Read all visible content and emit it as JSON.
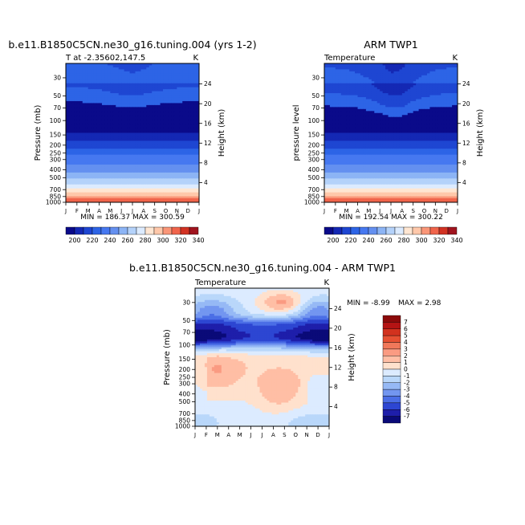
{
  "chart_data": [
    {
      "type": "heatmap",
      "title": "b.e11.B1850C5CN.ne30_g16.tuning.004 (yrs 1-2)",
      "subtitle_left": "T at -2.35602,147.5",
      "subtitle_right": "K",
      "ylabel": "Pressure (mb)",
      "ylabel_right": "Height (km)",
      "x_ticks": [
        "J",
        "F",
        "M",
        "A",
        "M",
        "J",
        "J",
        "A",
        "S",
        "O",
        "N",
        "D",
        "J"
      ],
      "y_ticks": [
        "30",
        "50",
        "70",
        "100",
        "150",
        "200",
        "250",
        "300",
        "400",
        "500",
        "700",
        "850",
        "1000"
      ],
      "y_ticks_right": [
        "24",
        "20",
        "16",
        "12",
        "8",
        "4"
      ],
      "stats": "MIN = 186.37  MAX = 300.59",
      "min": 186.37,
      "max": 300.59,
      "colorbar_labels": [
        "200",
        "220",
        "240",
        "260",
        "280",
        "300",
        "320",
        "340"
      ],
      "tropopause_boundary_mb": [
        58,
        59,
        60,
        62,
        65,
        68,
        70,
        68,
        64,
        62,
        60,
        59,
        58
      ]
    },
    {
      "type": "heatmap",
      "title": "ARM TWP1",
      "subtitle_left": "Temperature",
      "subtitle_right": "K",
      "ylabel": "pressure level",
      "ylabel_right": "Height (km)",
      "x_ticks": [
        "J",
        "F",
        "M",
        "A",
        "M",
        "J",
        "J",
        "A",
        "S",
        "O",
        "N",
        "D",
        "J"
      ],
      "y_ticks": [
        "30",
        "50",
        "70",
        "100",
        "150",
        "200",
        "250",
        "300",
        "400",
        "500",
        "700",
        "850",
        "1000"
      ],
      "y_ticks_right": [
        "24",
        "20",
        "16",
        "12",
        "8",
        "4"
      ],
      "stats": "MIN = 192.54  MAX = 300.22",
      "min": 192.54,
      "max": 300.22,
      "colorbar_labels": [
        "200",
        "220",
        "240",
        "260",
        "280",
        "300",
        "320",
        "340"
      ],
      "tropopause_boundary_mb": [
        66,
        67,
        68,
        70,
        75,
        82,
        90,
        88,
        78,
        72,
        68,
        67,
        66
      ]
    },
    {
      "type": "heatmap",
      "title": "b.e11.B1850C5CN.ne30_g16.tuning.004 - ARM TWP1",
      "subtitle_left": "Temperature",
      "subtitle_right": "K",
      "ylabel": "Pressure (mb)",
      "ylabel_right": "Height (km)",
      "x_ticks": [
        "J",
        "F",
        "M",
        "A",
        "M",
        "J",
        "J",
        "A",
        "S",
        "O",
        "N",
        "D",
        "J"
      ],
      "y_ticks": [
        "30",
        "50",
        "70",
        "100",
        "150",
        "200",
        "250",
        "300",
        "400",
        "500",
        "700",
        "850",
        "1000"
      ],
      "y_ticks_right": [
        "24",
        "20",
        "16",
        "12",
        "8",
        "4"
      ],
      "stats_min": "MIN =  -8.99",
      "stats_max": "MAX =   2.98",
      "min": -8.99,
      "max": 2.98,
      "colorbar_labels": [
        "7",
        "6",
        "5",
        "4",
        "3",
        "2",
        "1",
        "0",
        "-1",
        "-2",
        "-3",
        "-4",
        "-5",
        "-6",
        "-7"
      ]
    }
  ],
  "colors": {
    "temperature_scale": [
      "#0a0a8a",
      "#1428b4",
      "#1e46d2",
      "#2d64e6",
      "#4678f0",
      "#6490f0",
      "#8cb4f5",
      "#b4d2fa",
      "#dcebff",
      "#ffe6d2",
      "#ffc8aa",
      "#fa9678",
      "#f0644b",
      "#d23223",
      "#a0141e"
    ],
    "difference_scale": [
      "#8c0a0a",
      "#b41414",
      "#d2321e",
      "#e65032",
      "#f0785a",
      "#fa9b82",
      "#ffbea5",
      "#ffe1cd",
      "#dcebff",
      "#b9d7fa",
      "#96b9f5",
      "#7396f0",
      "#4b6ee6",
      "#2d46d2",
      "#1e1eaa",
      "#0a0a78"
    ]
  }
}
